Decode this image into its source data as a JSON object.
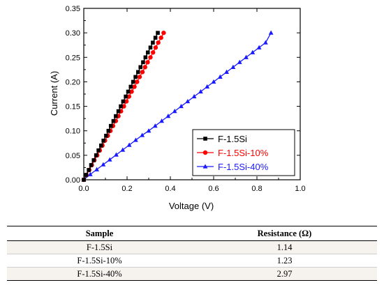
{
  "chart_data": {
    "type": "line",
    "xlabel": "Voltage (V)",
    "ylabel": "Current (A)",
    "xlim": [
      0.0,
      1.0
    ],
    "ylim": [
      0.0,
      0.35
    ],
    "xticks": [
      "0.0",
      "0.2",
      "0.4",
      "0.6",
      "0.8",
      "1.0"
    ],
    "yticks": [
      "0.00",
      "0.05",
      "0.10",
      "0.15",
      "0.20",
      "0.25",
      "0.30",
      "0.35"
    ],
    "legend_position": "bottom-right",
    "series": [
      {
        "name": "F-1.5Si",
        "color": "#000000",
        "marker": "square",
        "x": [
          0.0,
          0.011,
          0.023,
          0.034,
          0.046,
          0.057,
          0.068,
          0.08,
          0.091,
          0.103,
          0.114,
          0.125,
          0.137,
          0.148,
          0.16,
          0.171,
          0.182,
          0.194,
          0.205,
          0.217,
          0.228,
          0.239,
          0.251,
          0.262,
          0.274,
          0.285,
          0.296,
          0.308,
          0.319,
          0.331,
          0.342
        ],
        "y": [
          0.0,
          0.01,
          0.02,
          0.03,
          0.04,
          0.05,
          0.06,
          0.07,
          0.08,
          0.09,
          0.1,
          0.11,
          0.12,
          0.13,
          0.14,
          0.15,
          0.16,
          0.17,
          0.18,
          0.19,
          0.2,
          0.21,
          0.22,
          0.23,
          0.24,
          0.25,
          0.26,
          0.27,
          0.28,
          0.29,
          0.3
        ]
      },
      {
        "name": "F-1.5Si-10%",
        "color": "#ff0000",
        "marker": "circle",
        "x": [
          0.0,
          0.012,
          0.025,
          0.037,
          0.049,
          0.062,
          0.074,
          0.086,
          0.098,
          0.111,
          0.123,
          0.135,
          0.148,
          0.16,
          0.172,
          0.185,
          0.197,
          0.209,
          0.221,
          0.234,
          0.246,
          0.258,
          0.271,
          0.283,
          0.295,
          0.308,
          0.32,
          0.332,
          0.344,
          0.357,
          0.369
        ],
        "y": [
          0.0,
          0.01,
          0.02,
          0.03,
          0.04,
          0.05,
          0.06,
          0.07,
          0.08,
          0.09,
          0.1,
          0.11,
          0.12,
          0.13,
          0.14,
          0.15,
          0.16,
          0.17,
          0.18,
          0.19,
          0.2,
          0.21,
          0.22,
          0.23,
          0.24,
          0.25,
          0.26,
          0.27,
          0.28,
          0.29,
          0.3
        ]
      },
      {
        "name": "F-1.5Si-40%",
        "color": "#1a1aff",
        "marker": "triangle",
        "x": [
          0.0,
          0.03,
          0.06,
          0.09,
          0.12,
          0.15,
          0.18,
          0.21,
          0.24,
          0.27,
          0.3,
          0.33,
          0.36,
          0.39,
          0.42,
          0.45,
          0.48,
          0.51,
          0.54,
          0.57,
          0.6,
          0.63,
          0.66,
          0.69,
          0.72,
          0.75,
          0.78,
          0.81,
          0.84,
          0.865
        ],
        "y": [
          0.0,
          0.011,
          0.021,
          0.031,
          0.041,
          0.051,
          0.061,
          0.071,
          0.081,
          0.091,
          0.1,
          0.11,
          0.12,
          0.13,
          0.14,
          0.15,
          0.16,
          0.17,
          0.18,
          0.19,
          0.2,
          0.21,
          0.22,
          0.23,
          0.24,
          0.25,
          0.26,
          0.27,
          0.28,
          0.3
        ]
      }
    ]
  },
  "table": {
    "headers": [
      "Sample",
      "Resistance (Ω)"
    ],
    "rows": [
      [
        "F-1.5Si",
        "1.14"
      ],
      [
        "F-1.5Si-10%",
        "1.23"
      ],
      [
        "F-1.5Si-40%",
        "2.97"
      ]
    ]
  }
}
